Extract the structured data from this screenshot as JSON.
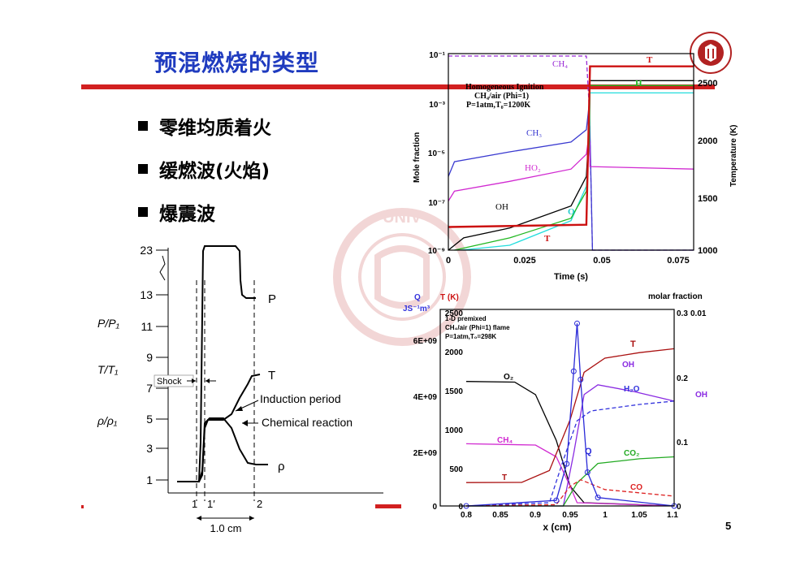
{
  "title": "预混燃烧的类型",
  "bullets": [
    "零维均质着火",
    "缓燃波(火焰)",
    "爆震波"
  ],
  "page_number": "5",
  "shock_figure": {
    "y_ticks": [
      "23",
      "13",
      "11",
      "9",
      "7",
      "5",
      "3",
      "1"
    ],
    "x_ticks": [
      "1",
      "1′",
      "2"
    ],
    "scale_label": "1.0 cm",
    "ratio_p": "P/P₁",
    "ratio_t": "T/T₁",
    "ratio_rho": "ρ/ρ₁",
    "curve_labels": {
      "p": "P",
      "t": "T",
      "rho": "ρ"
    },
    "annotations": {
      "shock": "Shock",
      "induction": "Induction period",
      "chemical": "Chemical reaction"
    }
  },
  "chart_data": [
    {
      "type": "line",
      "title": "Homogeneous Ignition",
      "subtitle": [
        "CH₄/air (Phi=1)",
        "P=1atm,T₀=1200K"
      ],
      "xlabel": "Time (s)",
      "ylabel": "Mole fraction",
      "y2label": "Temperature (K)",
      "x_ticks": [
        "0",
        "0.025",
        "0.05",
        "0.075"
      ],
      "y_ticks": [
        "10⁻¹",
        "10⁻³",
        "10⁻⁵",
        "10⁻⁷",
        "10⁻⁹"
      ],
      "y2_ticks": [
        "2500",
        "2000",
        "1500",
        "1000"
      ],
      "xlim": [
        0,
        0.08
      ],
      "ylim_log10": [
        -9,
        -1
      ],
      "y2lim": [
        1000,
        2700
      ],
      "ignition_time": 0.046,
      "series": [
        {
          "name": "CH₄",
          "color": "#9a2bd6",
          "axis": "left",
          "points": [
            [
              0,
              -1.1
            ],
            [
              0.045,
              -1.1
            ],
            [
              0.046,
              -3.3
            ],
            [
              0.047,
              -9
            ],
            [
              0.08,
              -9
            ]
          ]
        },
        {
          "name": "CH₃",
          "color": "#3a3ad0",
          "axis": "left",
          "points": [
            [
              0,
              -6
            ],
            [
              0.002,
              -5.4
            ],
            [
              0.02,
              -5.0
            ],
            [
              0.04,
              -4.6
            ],
            [
              0.045,
              -4.1
            ],
            [
              0.046,
              -3.0
            ],
            [
              0.047,
              -9
            ],
            [
              0.08,
              -9
            ]
          ]
        },
        {
          "name": "HO₂",
          "color": "#d12ad1",
          "axis": "left",
          "points": [
            [
              0,
              -7
            ],
            [
              0.002,
              -6.6
            ],
            [
              0.02,
              -6.2
            ],
            [
              0.04,
              -5.7
            ],
            [
              0.045,
              -5.1
            ],
            [
              0.046,
              -4.2
            ],
            [
              0.0462,
              -5.6
            ],
            [
              0.08,
              -5.7
            ]
          ]
        },
        {
          "name": "OH",
          "color": "#000000",
          "axis": "left",
          "points": [
            [
              0,
              -9
            ],
            [
              0.005,
              -8.5
            ],
            [
              0.02,
              -8.1
            ],
            [
              0.04,
              -7.2
            ],
            [
              0.045,
              -6.0
            ],
            [
              0.046,
              -3.8
            ],
            [
              0.0462,
              -2.1
            ],
            [
              0.08,
              -2.1
            ]
          ]
        },
        {
          "name": "O",
          "color": "#22dddd",
          "axis": "left",
          "points": [
            [
              0.004,
              -9
            ],
            [
              0.02,
              -8.8
            ],
            [
              0.04,
              -7.8
            ],
            [
              0.045,
              -6.4
            ],
            [
              0.046,
              -4.5
            ],
            [
              0.0462,
              -2.6
            ],
            [
              0.08,
              -2.6
            ]
          ]
        },
        {
          "name": "H",
          "color": "#22b822",
          "axis": "left",
          "points": [
            [
              0.002,
              -9
            ],
            [
              0.02,
              -8.5
            ],
            [
              0.04,
              -7.7
            ],
            [
              0.045,
              -6.6
            ],
            [
              0.046,
              -4.5
            ],
            [
              0.0462,
              -2.3
            ],
            [
              0.08,
              -2.3
            ]
          ]
        },
        {
          "name": "T",
          "color": "#cc1111",
          "axis": "right",
          "points": [
            [
              0,
              1200
            ],
            [
              0.045,
              1220
            ],
            [
              0.0462,
              2590
            ],
            [
              0.08,
              2590
            ]
          ]
        }
      ]
    },
    {
      "type": "line",
      "title": "1-D premixed",
      "subtitle": [
        "CH₄/air (Phi=1) flame",
        "P=1atm,T₀=298K"
      ],
      "xlabel": "x (cm)",
      "y_outer_label": [
        "Q",
        "JS⁻¹m³"
      ],
      "y_T_label": "T (K)",
      "y_molar_label": "molar fraction",
      "x_ticks": [
        "0.8",
        "0.85",
        "0.9",
        "0.95",
        "1",
        "1.05",
        "1.1"
      ],
      "q_ticks": [
        "6E+09",
        "4E+09",
        "2E+09",
        "0"
      ],
      "t_ticks": [
        "2500",
        "2000",
        "1500",
        "1000",
        "500",
        "0"
      ],
      "molar_ticks": [
        "0.3",
        "0.2",
        "0.1",
        "0"
      ],
      "oh_ticks": [
        "0.01"
      ],
      "oh_axis_label": "OH",
      "xlim": [
        0.8,
        1.1
      ],
      "qlim": [
        0,
        7000000000.0
      ],
      "tlim": [
        0,
        2500
      ],
      "molarlim": [
        0,
        0.3
      ],
      "series": [
        {
          "name": "O₂",
          "color": "#000000",
          "unit": "molar",
          "points": [
            [
              0.8,
              0.19
            ],
            [
              0.87,
              0.189
            ],
            [
              0.9,
              0.17
            ],
            [
              0.93,
              0.1
            ],
            [
              0.95,
              0.03
            ],
            [
              0.97,
              0.005
            ],
            [
              1.1,
              0.0
            ]
          ]
        },
        {
          "name": "CH₄",
          "color": "#d12ad1",
          "unit": "molar",
          "points": [
            [
              0.8,
              0.095
            ],
            [
              0.9,
              0.093
            ],
            [
              0.93,
              0.075
            ],
            [
              0.95,
              0.03
            ],
            [
              0.96,
              0.005
            ],
            [
              1.1,
              0.0
            ]
          ]
        },
        {
          "name": "T",
          "color": "#aa1111",
          "unit": "T",
          "points": [
            [
              0.8,
              298
            ],
            [
              0.88,
              300
            ],
            [
              0.92,
              450
            ],
            [
              0.95,
              1100
            ],
            [
              0.97,
              1700
            ],
            [
              1.0,
              1880
            ],
            [
              1.05,
              1950
            ],
            [
              1.1,
              2000
            ]
          ]
        },
        {
          "name": "OH",
          "color": "#8a2be2",
          "unit": "molar",
          "points": [
            [
              0.8,
              0
            ],
            [
              0.94,
              0
            ],
            [
              0.955,
              0.08
            ],
            [
              0.97,
              0.17
            ],
            [
              0.99,
              0.185
            ],
            [
              1.04,
              0.175
            ],
            [
              1.1,
              0.16
            ]
          ]
        },
        {
          "name": "H₂O",
          "color": "#3333dd",
          "dash": true,
          "unit": "molar",
          "points": [
            [
              0.8,
              0
            ],
            [
              0.92,
              0.005
            ],
            [
              0.94,
              0.07
            ],
            [
              0.96,
              0.13
            ],
            [
              0.98,
              0.145
            ],
            [
              1.05,
              0.155
            ],
            [
              1.1,
              0.16
            ]
          ]
        },
        {
          "name": "CO₂",
          "color": "#22aa22",
          "unit": "molar",
          "points": [
            [
              0.8,
              0
            ],
            [
              0.94,
              0
            ],
            [
              0.96,
              0.035
            ],
            [
              0.99,
              0.065
            ],
            [
              1.05,
              0.072
            ],
            [
              1.1,
              0.075
            ]
          ]
        },
        {
          "name": "CO",
          "color": "#dd2222",
          "dash": true,
          "unit": "molar",
          "points": [
            [
              0.8,
              0
            ],
            [
              0.93,
              0.002
            ],
            [
              0.95,
              0.03
            ],
            [
              0.965,
              0.04
            ],
            [
              1.0,
              0.025
            ],
            [
              1.1,
              0.015
            ]
          ]
        },
        {
          "name": "Q",
          "color": "#2a2ad8",
          "unit": "Q",
          "markers": true,
          "points": [
            [
              0.8,
              0
            ],
            [
              0.93,
              200000000.0
            ],
            [
              0.945,
              1500000000.0
            ],
            [
              0.955,
              4800000000.0
            ],
            [
              0.96,
              6500000000.0
            ],
            [
              0.965,
              4500000000.0
            ],
            [
              0.975,
              1200000000.0
            ],
            [
              0.99,
              300000000.0
            ],
            [
              1.1,
              0
            ]
          ]
        }
      ]
    }
  ]
}
